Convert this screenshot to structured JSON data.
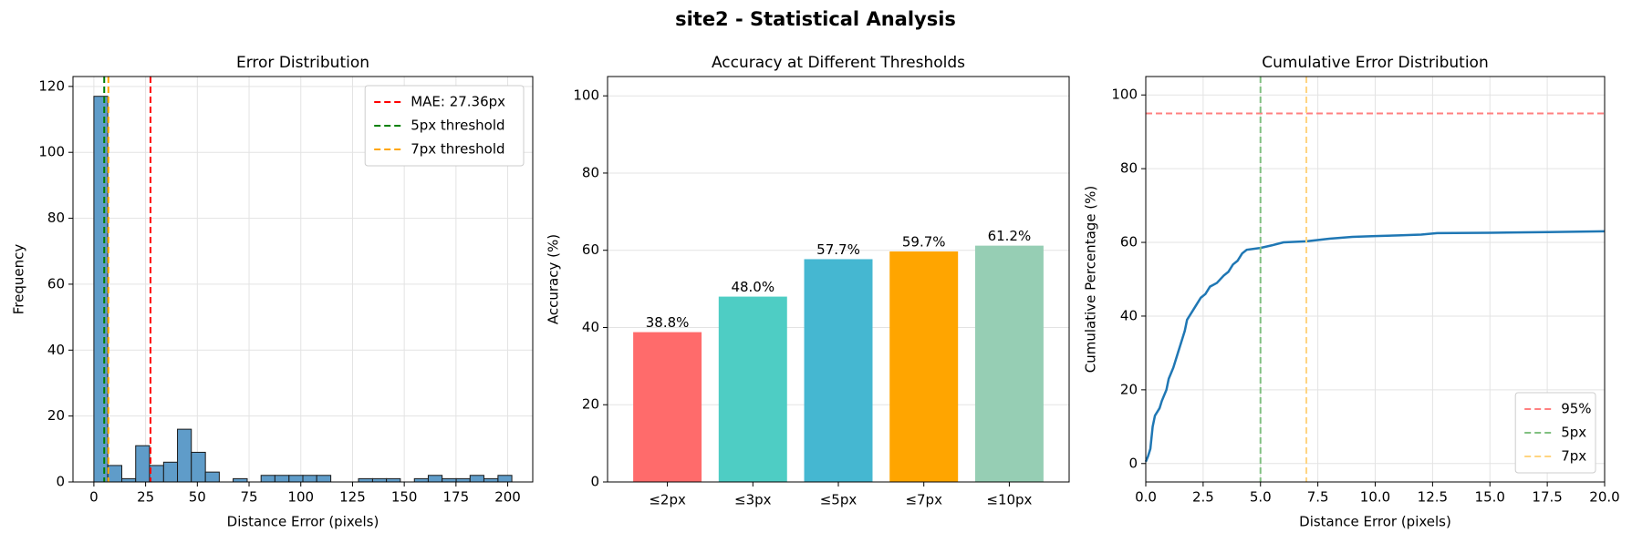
{
  "title": "site2 - Statistical Analysis",
  "chart_data": [
    {
      "type": "histogram",
      "title": "Error Distribution",
      "x_label": "Distance Error (pixels)",
      "y_label": "Frequency",
      "bins": [
        0,
        6.7,
        13.5,
        20.2,
        26.9,
        33.7,
        40.4,
        47.1,
        53.9,
        60.6,
        67.3,
        74.1,
        80.8,
        87.5,
        94.3,
        101,
        107.7,
        114.5,
        121.2,
        127.9,
        134.7,
        141.4,
        148.1,
        154.9,
        161.6,
        168.3,
        175.1,
        181.8,
        188.5,
        195.3,
        202
      ],
      "values": [
        117,
        5,
        1,
        11,
        5,
        6,
        16,
        9,
        3,
        0,
        1,
        0,
        2,
        2,
        2,
        2,
        2,
        0,
        0,
        1,
        1,
        1,
        0,
        1,
        2,
        1,
        1,
        2,
        1,
        2
      ],
      "color": "#5f9cc9",
      "edge_color": "#1a1a1a",
      "xlim": [
        -10.1,
        212.1
      ],
      "xticks": [
        0,
        25,
        50,
        75,
        100,
        125,
        150,
        175,
        200
      ],
      "ylim": [
        0,
        123
      ],
      "yticks": [
        0,
        20,
        40,
        60,
        80,
        100,
        120
      ],
      "grid": "both",
      "reference_lines": [
        {
          "name": "MAE: 27.36px",
          "orientation": "vertical",
          "value": 27.36,
          "color": "#ff0000"
        },
        {
          "name": "5px threshold",
          "orientation": "vertical",
          "value": 5,
          "color": "#008000"
        },
        {
          "name": "7px threshold",
          "orientation": "vertical",
          "value": 7,
          "color": "#ffa500"
        }
      ],
      "legend": "upper right"
    },
    {
      "type": "bar",
      "title": "Accuracy at Different Thresholds",
      "y_label": "Accuracy (%)",
      "categories": [
        "≤2px",
        "≤3px",
        "≤5px",
        "≤7px",
        "≤10px"
      ],
      "values": [
        38.8,
        48.0,
        57.7,
        59.7,
        61.2
      ],
      "value_labels": [
        "38.8%",
        "48.0%",
        "57.7%",
        "59.7%",
        "61.2%"
      ],
      "colors": [
        "#ff6b6b",
        "#4ecdc4",
        "#45b7d1",
        "#ffa500",
        "#96ceb4"
      ],
      "ylim": [
        0,
        105
      ],
      "yticks": [
        0,
        20,
        40,
        60,
        80,
        100
      ],
      "grid": "y"
    },
    {
      "type": "line",
      "title": "Cumulative Error Distribution",
      "x_label": "Distance Error (pixels)",
      "y_label": "Cumulative Percentage (%)",
      "x": [
        0,
        0.1,
        0.2,
        0.3,
        0.4,
        0.6,
        0.7,
        0.9,
        1.0,
        1.2,
        1.4,
        1.6,
        1.7,
        1.8,
        2.0,
        2.2,
        2.4,
        2.6,
        2.8,
        3.1,
        3.4,
        3.6,
        3.8,
        4.0,
        4.2,
        4.4,
        5.0,
        5.5,
        6.0,
        7.0,
        8.0,
        9.0,
        10.0,
        11.0,
        12.0,
        12.7,
        15.0,
        17.5,
        20.0
      ],
      "values": [
        0.5,
        2,
        4,
        10,
        13,
        15,
        17,
        20,
        23,
        26,
        30,
        34,
        36,
        39,
        41,
        43,
        45,
        46,
        48,
        49,
        51,
        52,
        54,
        55,
        57,
        58,
        58.5,
        59.2,
        60,
        60.3,
        61,
        61.5,
        61.7,
        61.9,
        62.1,
        62.5,
        62.6,
        62.8,
        63
      ],
      "color": "#1f77b4",
      "xlim": [
        0,
        20
      ],
      "xticks": [
        {
          "value": 0,
          "label": "0.0"
        },
        2.5,
        {
          "value": 5,
          "label": "5.0"
        },
        7.5,
        {
          "value": 10,
          "label": "10.0"
        },
        12.5,
        {
          "value": 15,
          "label": "15.0"
        },
        17.5,
        {
          "value": 20,
          "label": "20.0"
        }
      ],
      "ylim": [
        -5,
        105
      ],
      "yticks": [
        0,
        20,
        40,
        60,
        80,
        100
      ],
      "grid": "both",
      "reference_lines": [
        {
          "name": "95%",
          "orientation": "horizontal",
          "value": 95,
          "color": "#ff8080"
        },
        {
          "name": "5px",
          "orientation": "vertical",
          "value": 5,
          "color": "#80c080"
        },
        {
          "name": "7px",
          "orientation": "vertical",
          "value": 7,
          "color": "#ffd480"
        }
      ],
      "legend": "lower right"
    }
  ]
}
